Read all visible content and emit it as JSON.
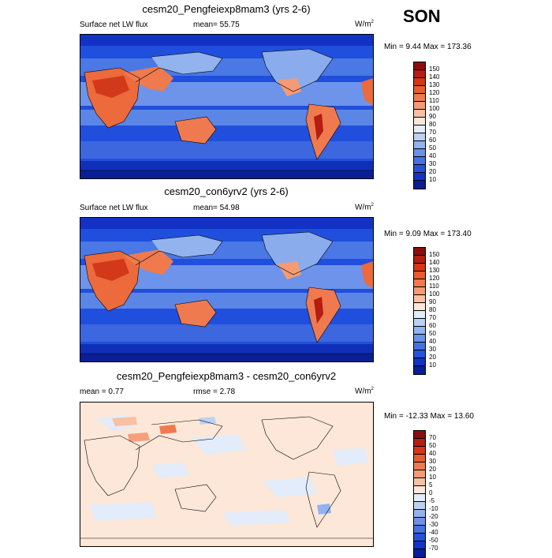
{
  "season": "SON",
  "panels": [
    {
      "title": "cesm20_Pengfeiexp8mam3 (yrs 2-6)",
      "left_label": "Surface net LW flux",
      "center_label": "mean=  55.75",
      "units_base": "W/m",
      "units_exp": "2",
      "minmax": "Min =   9.44 Max = 173.36",
      "ticks": [
        "150",
        "140",
        "130",
        "120",
        "110",
        "100",
        "90",
        "80",
        "70",
        "60",
        "50",
        "40",
        "30",
        "20",
        "10"
      ],
      "colors": [
        "#8b0d0d",
        "#b41d12",
        "#d63516",
        "#e85a30",
        "#f07a4f",
        "#f59a73",
        "#f9c0a1",
        "#fde7d8",
        "#e2ecfa",
        "#bcd1f4",
        "#93b3ef",
        "#6a92e8",
        "#4573e2",
        "#2453db",
        "#0f34c6",
        "#0a1f94"
      ],
      "map_base": "#1a44d6"
    },
    {
      "title": "cesm20_con6yrv2 (yrs 2-6)",
      "left_label": "Surface net LW flux",
      "center_label": "mean=  54.98",
      "units_base": "W/m",
      "units_exp": "2",
      "minmax": "Min =   9.09 Max = 173.40",
      "ticks": [
        "150",
        "140",
        "130",
        "120",
        "110",
        "100",
        "90",
        "80",
        "70",
        "60",
        "50",
        "40",
        "30",
        "20",
        "10"
      ],
      "colors": [
        "#8b0d0d",
        "#b41d12",
        "#d63516",
        "#e85a30",
        "#f07a4f",
        "#f59a73",
        "#f9c0a1",
        "#fde7d8",
        "#e2ecfa",
        "#bcd1f4",
        "#93b3ef",
        "#6a92e8",
        "#4573e2",
        "#2453db",
        "#0f34c6",
        "#0a1f94"
      ],
      "map_base": "#1a44d6"
    },
    {
      "title": "cesm20_Pengfeiexp8mam3 - cesm20_con6yrv2",
      "left_label": "mean =   0.77",
      "center_label": "rmse =   2.78",
      "units_base": "W/m",
      "units_exp": "2",
      "minmax": "Min = -12.33 Max = 13.60",
      "ticks": [
        "70",
        "50",
        "40",
        "30",
        "20",
        "10",
        "5",
        "0",
        "-5",
        "-10",
        "-20",
        "-30",
        "-40",
        "-50",
        "-70"
      ],
      "colors": [
        "#8b0d0d",
        "#b41d12",
        "#d63516",
        "#e85a30",
        "#f07a4f",
        "#f59a73",
        "#f9c0a1",
        "#fde7d8",
        "#e2ecfa",
        "#bcd1f4",
        "#93b3ef",
        "#6a92e8",
        "#4573e2",
        "#2453db",
        "#0f34c6",
        "#0a1f94"
      ],
      "map_base": "#fde7d8"
    }
  ]
}
